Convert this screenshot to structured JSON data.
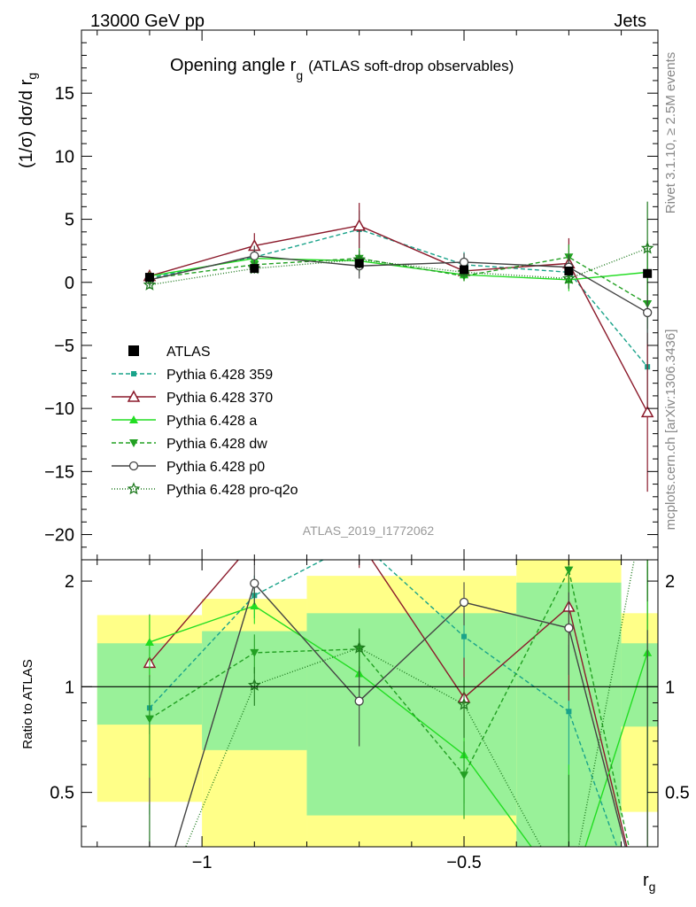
{
  "header": {
    "energy_label": "13000 GeV pp",
    "category_label": "Jets",
    "rivet_label": "Rivet 3.1.10, ≥ 2.5M events",
    "mcplots_label": "mcplots.cern.ch [arXiv:1306.3436]",
    "analysis_id": "ATLAS_2019_I1772062"
  },
  "chart_data": [
    {
      "type": "line",
      "panel": "main",
      "title_main": "Opening angle r",
      "title_sub": "g",
      "title_suffix": "(ATLAS soft-drop observables)",
      "ylabel": "(1/σ) dσ/d r",
      "ylabel_sub": "g",
      "xlabel": "r",
      "xlabel_sub": "g",
      "xlim": [
        -1.23,
        -0.13
      ],
      "ylim": [
        -22,
        20
      ],
      "x_ticks": [
        -1,
        -0.5
      ],
      "x_tick_labels": [
        "−1",
        "−0.5"
      ],
      "y_ticks": [
        -20,
        -15,
        -10,
        -5,
        0,
        5,
        10,
        15
      ],
      "y_tick_labels": [
        "−20",
        "−15",
        "−10",
        "−5",
        "0",
        "5",
        "10",
        "15"
      ],
      "legend_position": "bottom-left",
      "x": [
        -1.1,
        -0.9,
        -0.7,
        -0.5,
        -0.3,
        -0.15
      ],
      "series": [
        {
          "name": "ATLAS",
          "color": "#000000",
          "marker": "square",
          "dash": "",
          "values": [
            0.4,
            1.1,
            1.5,
            1.0,
            0.9,
            0.7
          ],
          "err": [
            0.15,
            0.2,
            0.25,
            0.2,
            0.25,
            0.3
          ]
        },
        {
          "name": "Pythia 6.428 359",
          "color": "#1aa38a",
          "marker": "smallsquare",
          "dash": "5,3",
          "values": [
            0.35,
            2.0,
            4.2,
            1.4,
            0.8,
            -6.7
          ],
          "err": [
            0.5,
            0.8,
            1.5,
            1.0,
            1.2,
            4.0
          ]
        },
        {
          "name": "Pythia 6.428 370",
          "color": "#8b1a2b",
          "marker": "triangle-open",
          "dash": "",
          "values": [
            0.5,
            2.9,
            4.5,
            0.9,
            1.5,
            -10.3
          ],
          "err": [
            0.5,
            1.0,
            1.8,
            0.8,
            2.0,
            6.3
          ]
        },
        {
          "name": "Pythia 6.428 a",
          "color": "#22dd22",
          "marker": "triangle",
          "dash": "",
          "values": [
            0.5,
            1.9,
            1.7,
            0.6,
            0.2,
            0.8
          ],
          "err": [
            0.3,
            0.6,
            0.9,
            0.5,
            0.9,
            2.5
          ]
        },
        {
          "name": "Pythia 6.428 dw",
          "color": "#22a022",
          "marker": "triangle-down",
          "dash": "5,3",
          "values": [
            0.3,
            1.4,
            1.9,
            0.5,
            2.0,
            -1.7
          ],
          "err": [
            0.3,
            0.5,
            0.8,
            0.4,
            1.0,
            2.0
          ]
        },
        {
          "name": "Pythia 6.428 p0",
          "color": "#444444",
          "marker": "circle-open",
          "dash": "",
          "values": [
            0.2,
            2.1,
            1.3,
            1.6,
            1.2,
            -2.4
          ],
          "err": [
            0.4,
            0.8,
            1.0,
            0.7,
            1.0,
            2.5
          ]
        },
        {
          "name": "Pythia 6.428 pro-q2o",
          "color": "#1f7a1f",
          "marker": "star",
          "dash": "1,2",
          "values": [
            -0.2,
            1.1,
            1.8,
            0.8,
            0.3,
            2.7
          ],
          "err": [
            0.3,
            0.4,
            0.7,
            0.5,
            0.8,
            3.7
          ]
        }
      ]
    },
    {
      "type": "line",
      "panel": "ratio",
      "ylabel": "Ratio to ATLAS",
      "ylim": [
        0.35,
        2.3
      ],
      "y_ticks": [
        0.5,
        1,
        2
      ],
      "y_tick_labels": [
        "0.5",
        "1",
        "2"
      ],
      "log_scale_y": true,
      "bands": [
        {
          "x_range": [
            -1.2,
            -1.0
          ],
          "inner": [
            0.78,
            1.33
          ],
          "outer": [
            0.47,
            1.6
          ]
        },
        {
          "x_range": [
            -1.0,
            -0.8
          ],
          "inner": [
            0.66,
            1.44
          ],
          "outer": [
            0.35,
            1.78
          ]
        },
        {
          "x_range": [
            -0.8,
            -0.4
          ],
          "inner": [
            0.43,
            1.62
          ],
          "outer": [
            0.35,
            2.07
          ]
        },
        {
          "x_range": [
            -0.4,
            -0.2
          ],
          "inner": [
            0.35,
            1.98
          ],
          "outer": [
            0.35,
            2.3
          ]
        },
        {
          "x_range": [
            -0.2,
            -0.1
          ],
          "inner": [
            0.77,
            1.33
          ],
          "outer": [
            0.44,
            1.62
          ]
        }
      ],
      "series": [
        {
          "name": "Pythia 6.428 359",
          "values": [
            0.87,
            1.82,
            2.6,
            1.39,
            0.85,
            0.2
          ]
        },
        {
          "name": "Pythia 6.428 370",
          "values": [
            1.17,
            2.6,
            2.6,
            0.93,
            1.69,
            0.2
          ]
        },
        {
          "name": "Pythia 6.428 a",
          "values": [
            1.34,
            1.7,
            1.09,
            0.64,
            0.25,
            1.25
          ]
        },
        {
          "name": "Pythia 6.428 dw",
          "values": [
            0.81,
            1.25,
            1.28,
            0.56,
            2.15,
            0.2
          ]
        },
        {
          "name": "Pythia 6.428 p0",
          "values": [
            0.2,
            1.97,
            0.91,
            1.74,
            1.47,
            0.2
          ]
        },
        {
          "name": "Pythia 6.428 pro-q2o",
          "values": [
            0.2,
            1.01,
            1.29,
            0.89,
            0.25,
            3.6
          ]
        }
      ]
    }
  ]
}
